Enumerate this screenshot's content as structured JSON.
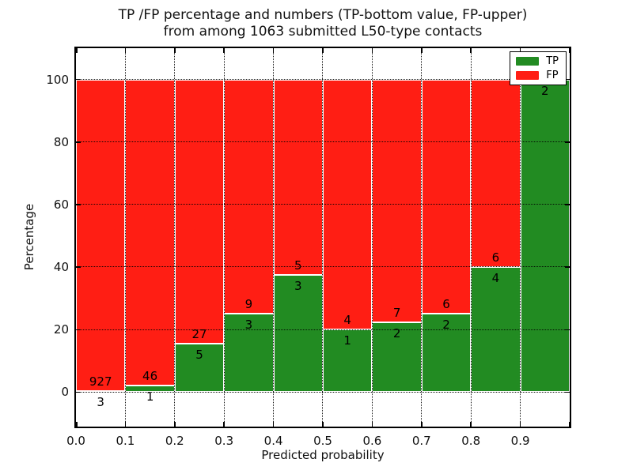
{
  "chart_data": {
    "type": "bar",
    "variant": "stacked-percentage",
    "title_line1": "TP /FP percentage and numbers (TP-bottom value, FP-upper)",
    "title_line2": "from among 1063 submitted L50-type contacts",
    "xlabel": "Predicted probability",
    "ylabel": "Percentage",
    "total_submitted": 1063,
    "categories": [
      "0.0-0.1",
      "0.1-0.2",
      "0.2-0.3",
      "0.3-0.4",
      "0.4-0.5",
      "0.5-0.6",
      "0.6-0.7",
      "0.7-0.8",
      "0.8-0.9",
      "0.9-1.0"
    ],
    "x_tick_labels": [
      "0.0",
      "0.1",
      "0.2",
      "0.3",
      "0.4",
      "0.5",
      "0.6",
      "0.7",
      "0.8",
      "0.9"
    ],
    "y_tick_values": [
      0,
      20,
      40,
      60,
      80,
      100
    ],
    "y_tick_labels": [
      "0",
      "20",
      "40",
      "60",
      "80",
      "100"
    ],
    "ylim": [
      -11,
      110
    ],
    "xlim": [
      0.0,
      1.0
    ],
    "grid": {
      "style": "dotted",
      "color": "#000000"
    },
    "series": [
      {
        "name": "TP",
        "color": "#228B22",
        "stack_position": "bottom",
        "values": [
          3,
          1,
          5,
          3,
          3,
          1,
          2,
          2,
          4,
          2
        ]
      },
      {
        "name": "FP",
        "color": "#FF1E14",
        "stack_position": "top",
        "values": [
          927,
          46,
          27,
          9,
          5,
          4,
          7,
          6,
          6,
          0
        ]
      }
    ],
    "tp_percent_of_bin": [
      0.32,
      2.13,
      15.63,
      25.0,
      37.5,
      20.0,
      22.22,
      25.0,
      40.0,
      100.0
    ],
    "legend": {
      "position": "upper-right",
      "entries": [
        {
          "label": "TP",
          "color": "#228B22"
        },
        {
          "label": "FP",
          "color": "#FF1E14"
        }
      ]
    }
  }
}
